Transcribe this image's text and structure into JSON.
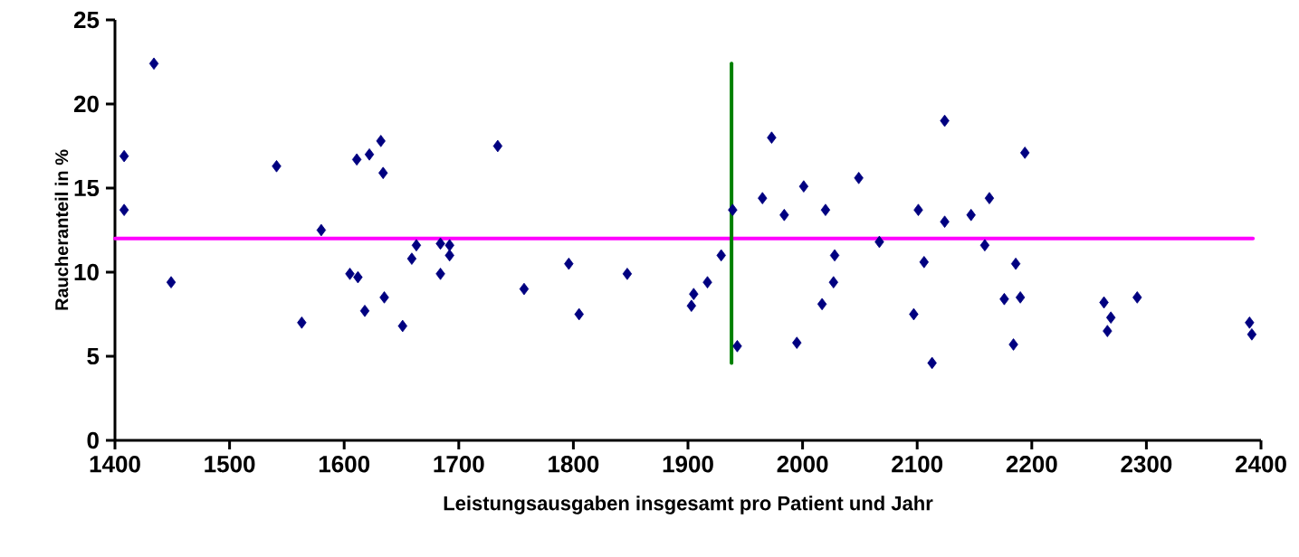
{
  "chart_data": {
    "type": "scatter",
    "xlabel": "Leistungsausgaben insgesamt pro Patient und Jahr",
    "ylabel": "Raucheranteil in %",
    "xlim": [
      1400,
      2400
    ],
    "ylim": [
      0,
      25
    ],
    "xticks": [
      1400,
      1500,
      1600,
      1700,
      1800,
      1900,
      2000,
      2100,
      2200,
      2300,
      2400
    ],
    "yticks": [
      0,
      5,
      10,
      15,
      20,
      25
    ],
    "grid": false,
    "marker": "diamond",
    "series": [
      {
        "color": "#000080",
        "x": [
          1408,
          1408,
          1434,
          1449,
          1541,
          1563,
          1580,
          1605,
          1611,
          1612,
          1618,
          1622,
          1632,
          1634,
          1635,
          1651,
          1659,
          1663,
          1684,
          1684,
          1692,
          1692,
          1734,
          1757,
          1796,
          1805,
          1847,
          1903,
          1905,
          1917,
          1929,
          1939,
          1943,
          1965,
          1973,
          1984,
          1995,
          2001,
          2017,
          2020,
          2027,
          2028,
          2049,
          2067,
          2097,
          2101,
          2106,
          2113,
          2124,
          2124,
          2147,
          2159,
          2163,
          2176,
          2184,
          2186,
          2190,
          2194,
          2263,
          2266,
          2269,
          2292,
          2390,
          2392
        ],
        "values": [
          16.9,
          13.7,
          22.4,
          9.4,
          16.3,
          7.0,
          12.5,
          9.9,
          16.7,
          9.7,
          7.7,
          17.0,
          17.8,
          15.9,
          8.5,
          6.8,
          10.8,
          11.6,
          11.7,
          9.9,
          11.0,
          11.6,
          17.5,
          9.0,
          10.5,
          7.5,
          9.9,
          8.0,
          8.7,
          9.4,
          11.0,
          13.7,
          5.6,
          14.4,
          18.0,
          13.4,
          5.8,
          15.1,
          8.1,
          13.7,
          9.4,
          11.0,
          15.6,
          11.8,
          7.5,
          13.7,
          10.6,
          4.6,
          19.0,
          13.0,
          13.4,
          11.6,
          14.4,
          8.4,
          5.7,
          10.5,
          8.5,
          17.1,
          8.2,
          6.5,
          7.3,
          8.5,
          7.0,
          6.3
        ]
      },
      {
        "type": "line",
        "marker": "none",
        "color": "#ff00ff",
        "x": [
          1400,
          2393
        ],
        "values": [
          12,
          12
        ]
      },
      {
        "type": "line",
        "marker": "none",
        "color": "#008000",
        "x": [
          1938,
          1938
        ],
        "values": [
          4.6,
          22.4
        ]
      }
    ]
  }
}
